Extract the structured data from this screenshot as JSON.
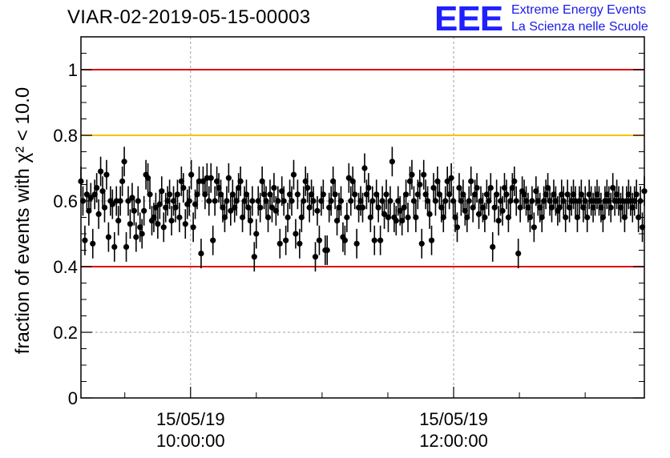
{
  "title": "VIAR-02-2019-05-15-00003",
  "logo": {
    "mark": "EEE",
    "line1": "Extreme Energy Events",
    "line2": "La Scienza nelle Scuole",
    "color": "#1f1fff"
  },
  "colors": {
    "points": "#000000",
    "limit_lines": "#e00000",
    "warning_line": "#ffc000",
    "grid": "#a0a0a0"
  },
  "chart_data": {
    "type": "scatter",
    "ylabel": "fraction of events with χ² < 10.0",
    "ylim": [
      0,
      1.1
    ],
    "yticks": [
      {
        "v": 0,
        "label": "0"
      },
      {
        "v": 0.2,
        "label": "0.2"
      },
      {
        "v": 0.4,
        "label": "0.4"
      },
      {
        "v": 0.6,
        "label": "0.6"
      },
      {
        "v": 0.8,
        "label": "0.8"
      },
      {
        "v": 1.0,
        "label": "1"
      }
    ],
    "xlim": [
      "2019-05-15T09:10:00",
      "2019-05-15T13:27:00"
    ],
    "xticks": [
      {
        "t": "2019-05-15T10:00:00",
        "date": "15/05/19",
        "time": "10:00:00"
      },
      {
        "t": "2019-05-15T12:00:00",
        "date": "15/05/19",
        "time": "12:00:00"
      }
    ],
    "grid": true,
    "reference_lines": [
      {
        "y": 1.0,
        "color": "#e00000"
      },
      {
        "y": 0.8,
        "color": "#ffc000"
      },
      {
        "y": 0.4,
        "color": "#e00000"
      }
    ],
    "series": [
      {
        "x_start": "2019-05-15T09:10:00",
        "x_end": "2019-05-15T13:27:00",
        "yerr": 0.045,
        "y": [
          0.66,
          0.6,
          0.48,
          0.62,
          0.57,
          0.61,
          0.47,
          0.62,
          0.64,
          0.56,
          0.69,
          0.63,
          0.58,
          0.68,
          0.49,
          0.6,
          0.59,
          0.46,
          0.6,
          0.54,
          0.6,
          0.66,
          0.72,
          0.46,
          0.6,
          0.53,
          0.61,
          0.57,
          0.49,
          0.6,
          0.52,
          0.5,
          0.57,
          0.68,
          0.67,
          0.62,
          0.54,
          0.55,
          0.58,
          0.53,
          0.59,
          0.63,
          0.52,
          0.58,
          0.6,
          0.62,
          0.54,
          0.6,
          0.58,
          0.62,
          0.55,
          0.66,
          0.64,
          0.53,
          0.59,
          0.6,
          0.68,
          0.52,
          0.59,
          0.62,
          0.66,
          0.44,
          0.66,
          0.62,
          0.67,
          0.6,
          0.67,
          0.48,
          0.6,
          0.66,
          0.64,
          0.62,
          0.58,
          0.55,
          0.6,
          0.67,
          0.57,
          0.62,
          0.58,
          0.6,
          0.64,
          0.66,
          0.55,
          0.6,
          0.62,
          0.58,
          0.54,
          0.6,
          0.43,
          0.5,
          0.6,
          0.58,
          0.66,
          0.62,
          0.6,
          0.55,
          0.62,
          0.58,
          0.64,
          0.57,
          0.6,
          0.47,
          0.63,
          0.6,
          0.48,
          0.55,
          0.62,
          0.6,
          0.68,
          0.5,
          0.62,
          0.47,
          0.55,
          0.6,
          0.66,
          0.64,
          0.58,
          0.62,
          0.6,
          0.43,
          0.57,
          0.48,
          0.6,
          0.62,
          0.45,
          0.45,
          0.58,
          0.6,
          0.66,
          0.62,
          0.54,
          0.58,
          0.6,
          0.49,
          0.48,
          0.55,
          0.67,
          0.6,
          0.66,
          0.62,
          0.47,
          0.58,
          0.6,
          0.58,
          0.7,
          0.62,
          0.64,
          0.55,
          0.6,
          0.48,
          0.62,
          0.58,
          0.48,
          0.6,
          0.56,
          0.62,
          0.55,
          0.6,
          0.72,
          0.55,
          0.54,
          0.6,
          0.57,
          0.54,
          0.58,
          0.62,
          0.55,
          0.66,
          0.68,
          0.6,
          0.55,
          0.62,
          0.65,
          0.47,
          0.68,
          0.62,
          0.6,
          0.56,
          0.48,
          0.64,
          0.6,
          0.66,
          0.62,
          0.58,
          0.55,
          0.6,
          0.66,
          0.62,
          0.67,
          0.6,
          0.55,
          0.52,
          0.64,
          0.6,
          0.62,
          0.57,
          0.55,
          0.6,
          0.66,
          0.58,
          0.62,
          0.64,
          0.56,
          0.6,
          0.58,
          0.55,
          0.62,
          0.6,
          0.64,
          0.46,
          0.58,
          0.62,
          0.54,
          0.6,
          0.57,
          0.64,
          0.62,
          0.55,
          0.6,
          0.64,
          0.66,
          0.6,
          0.44,
          0.58,
          0.63,
          0.62,
          0.6,
          0.58,
          0.55,
          0.6,
          0.52,
          0.63,
          0.6,
          0.58,
          0.55,
          0.6,
          0.62,
          0.64,
          0.6,
          0.58,
          0.62,
          0.6,
          0.57,
          0.58,
          0.62,
          0.6,
          0.55,
          0.62,
          0.58,
          0.6,
          0.62,
          0.6,
          0.55,
          0.6,
          0.62,
          0.58,
          0.6,
          0.55,
          0.62,
          0.6,
          0.58,
          0.6,
          0.62,
          0.6,
          0.58,
          0.55,
          0.6,
          0.62,
          0.6,
          0.58,
          0.64,
          0.6,
          0.62,
          0.6,
          0.58,
          0.6,
          0.55,
          0.6,
          0.62,
          0.6,
          0.58,
          0.6,
          0.62,
          0.55,
          0.6,
          0.52,
          0.63
        ]
      }
    ]
  }
}
